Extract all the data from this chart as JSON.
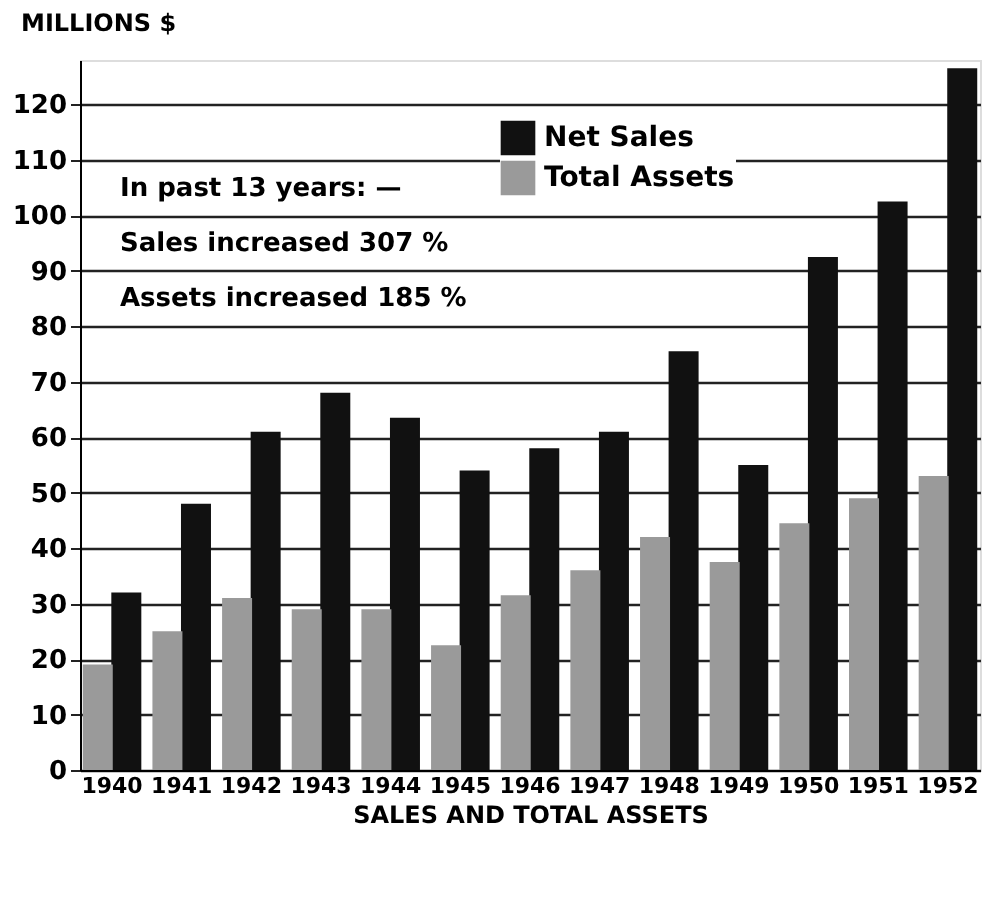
{
  "chart_data": {
    "type": "bar",
    "ylabel": "MILLIONS $",
    "xlabel": "SALES AND TOTAL ASSETS",
    "categories": [
      "1940",
      "1941",
      "1942",
      "1943",
      "1944",
      "1945",
      "1946",
      "1947",
      "1948",
      "1949",
      "1950",
      "1951",
      "1952"
    ],
    "series": [
      {
        "name": "Net Sales",
        "color": "#111111",
        "values": [
          32,
          48,
          61,
          68,
          63.5,
          54,
          58,
          61,
          75.5,
          55,
          92.5,
          102.5,
          126.5
        ]
      },
      {
        "name": "Total Assets",
        "color": "#9a9a9a",
        "values": [
          19,
          25,
          31,
          29,
          29,
          22.5,
          31.5,
          36,
          42,
          37.5,
          44.5,
          49,
          53
        ]
      }
    ],
    "ylim": [
      0,
      128
    ],
    "yticks": [
      0,
      10,
      20,
      30,
      40,
      50,
      60,
      70,
      80,
      90,
      100,
      110,
      120
    ],
    "grid": "y",
    "legend": "top",
    "annotations": [
      "In past 13 years: —",
      "Sales increased 307 %",
      "Assets increased 185 %"
    ]
  }
}
